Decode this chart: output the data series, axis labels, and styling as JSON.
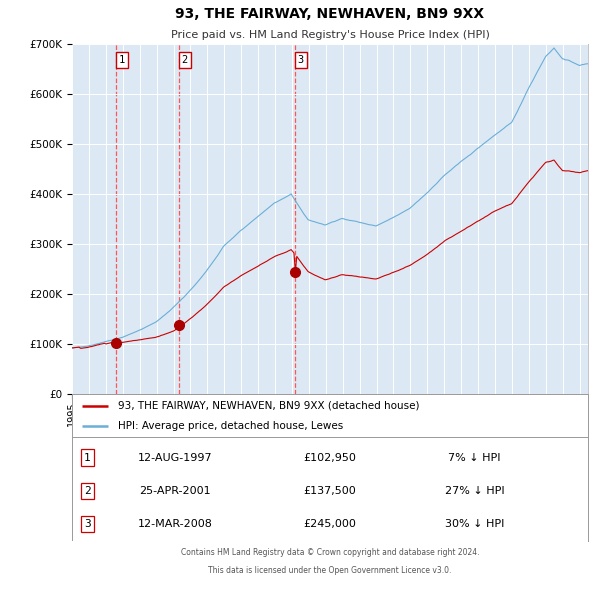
{
  "title": "93, THE FAIRWAY, NEWHAVEN, BN9 9XX",
  "subtitle": "Price paid vs. HM Land Registry's House Price Index (HPI)",
  "bg_color": "#ffffff",
  "plot_bg_color": "#dce9f5",
  "hpi_color": "#6baed6",
  "price_color": "#cc0000",
  "grid_color": "#ffffff",
  "sale_marker_color": "#aa0000",
  "vline_color": "#ff5555",
  "sales": [
    {
      "label": "1",
      "date_num": 1997.614,
      "price": 102950,
      "pct": "7%",
      "dir": "↓",
      "date_str": "12-AUG-1997"
    },
    {
      "label": "2",
      "date_num": 2001.319,
      "price": 137500,
      "pct": "27%",
      "dir": "↓",
      "date_str": "25-APR-2001"
    },
    {
      "label": "3",
      "date_num": 2008.197,
      "price": 245000,
      "pct": "30%",
      "dir": "↓",
      "date_str": "12-MAR-2008"
    }
  ],
  "legend_entries": [
    "93, THE FAIRWAY, NEWHAVEN, BN9 9XX (detached house)",
    "HPI: Average price, detached house, Lewes"
  ],
  "footnote1": "Contains HM Land Registry data © Crown copyright and database right 2024.",
  "footnote2": "This data is licensed under the Open Government Licence v3.0.",
  "ylim": [
    0,
    700000
  ],
  "yticks": [
    0,
    100000,
    200000,
    300000,
    400000,
    500000,
    600000,
    700000
  ],
  "ytick_labels": [
    "£0",
    "£100K",
    "£200K",
    "£300K",
    "£400K",
    "£500K",
    "£600K",
    "£700K"
  ],
  "xstart": 1995.0,
  "xend": 2025.5
}
